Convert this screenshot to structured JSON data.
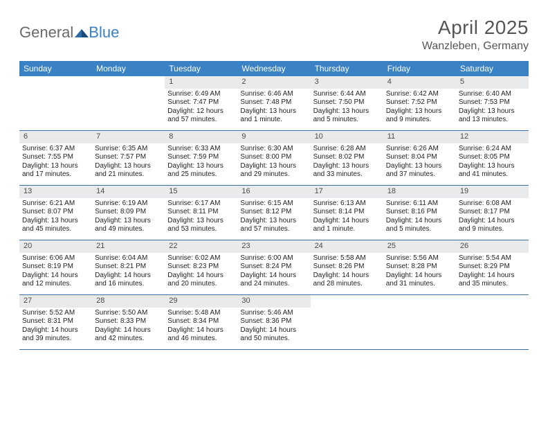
{
  "logo": {
    "text1": "General",
    "text2": "Blue"
  },
  "title": "April 2025",
  "location": "Wanzleben, Germany",
  "colors": {
    "header_bg": "#3b82c4",
    "header_text": "#ffffff",
    "daynum_bg": "#e9eaeb",
    "week_border": "#3b6fa0",
    "title_color": "#555555",
    "logo_gray": "#6a6a6a",
    "logo_blue": "#3b7fc4"
  },
  "weekdays": [
    "Sunday",
    "Monday",
    "Tuesday",
    "Wednesday",
    "Thursday",
    "Friday",
    "Saturday"
  ],
  "weeks": [
    [
      {
        "empty": true
      },
      {
        "empty": true
      },
      {
        "day": "1",
        "sunrise": "Sunrise: 6:49 AM",
        "sunset": "Sunset: 7:47 PM",
        "daylight1": "Daylight: 12 hours",
        "daylight2": "and 57 minutes."
      },
      {
        "day": "2",
        "sunrise": "Sunrise: 6:46 AM",
        "sunset": "Sunset: 7:48 PM",
        "daylight1": "Daylight: 13 hours",
        "daylight2": "and 1 minute."
      },
      {
        "day": "3",
        "sunrise": "Sunrise: 6:44 AM",
        "sunset": "Sunset: 7:50 PM",
        "daylight1": "Daylight: 13 hours",
        "daylight2": "and 5 minutes."
      },
      {
        "day": "4",
        "sunrise": "Sunrise: 6:42 AM",
        "sunset": "Sunset: 7:52 PM",
        "daylight1": "Daylight: 13 hours",
        "daylight2": "and 9 minutes."
      },
      {
        "day": "5",
        "sunrise": "Sunrise: 6:40 AM",
        "sunset": "Sunset: 7:53 PM",
        "daylight1": "Daylight: 13 hours",
        "daylight2": "and 13 minutes."
      }
    ],
    [
      {
        "day": "6",
        "sunrise": "Sunrise: 6:37 AM",
        "sunset": "Sunset: 7:55 PM",
        "daylight1": "Daylight: 13 hours",
        "daylight2": "and 17 minutes."
      },
      {
        "day": "7",
        "sunrise": "Sunrise: 6:35 AM",
        "sunset": "Sunset: 7:57 PM",
        "daylight1": "Daylight: 13 hours",
        "daylight2": "and 21 minutes."
      },
      {
        "day": "8",
        "sunrise": "Sunrise: 6:33 AM",
        "sunset": "Sunset: 7:59 PM",
        "daylight1": "Daylight: 13 hours",
        "daylight2": "and 25 minutes."
      },
      {
        "day": "9",
        "sunrise": "Sunrise: 6:30 AM",
        "sunset": "Sunset: 8:00 PM",
        "daylight1": "Daylight: 13 hours",
        "daylight2": "and 29 minutes."
      },
      {
        "day": "10",
        "sunrise": "Sunrise: 6:28 AM",
        "sunset": "Sunset: 8:02 PM",
        "daylight1": "Daylight: 13 hours",
        "daylight2": "and 33 minutes."
      },
      {
        "day": "11",
        "sunrise": "Sunrise: 6:26 AM",
        "sunset": "Sunset: 8:04 PM",
        "daylight1": "Daylight: 13 hours",
        "daylight2": "and 37 minutes."
      },
      {
        "day": "12",
        "sunrise": "Sunrise: 6:24 AM",
        "sunset": "Sunset: 8:05 PM",
        "daylight1": "Daylight: 13 hours",
        "daylight2": "and 41 minutes."
      }
    ],
    [
      {
        "day": "13",
        "sunrise": "Sunrise: 6:21 AM",
        "sunset": "Sunset: 8:07 PM",
        "daylight1": "Daylight: 13 hours",
        "daylight2": "and 45 minutes."
      },
      {
        "day": "14",
        "sunrise": "Sunrise: 6:19 AM",
        "sunset": "Sunset: 8:09 PM",
        "daylight1": "Daylight: 13 hours",
        "daylight2": "and 49 minutes."
      },
      {
        "day": "15",
        "sunrise": "Sunrise: 6:17 AM",
        "sunset": "Sunset: 8:11 PM",
        "daylight1": "Daylight: 13 hours",
        "daylight2": "and 53 minutes."
      },
      {
        "day": "16",
        "sunrise": "Sunrise: 6:15 AM",
        "sunset": "Sunset: 8:12 PM",
        "daylight1": "Daylight: 13 hours",
        "daylight2": "and 57 minutes."
      },
      {
        "day": "17",
        "sunrise": "Sunrise: 6:13 AM",
        "sunset": "Sunset: 8:14 PM",
        "daylight1": "Daylight: 14 hours",
        "daylight2": "and 1 minute."
      },
      {
        "day": "18",
        "sunrise": "Sunrise: 6:11 AM",
        "sunset": "Sunset: 8:16 PM",
        "daylight1": "Daylight: 14 hours",
        "daylight2": "and 5 minutes."
      },
      {
        "day": "19",
        "sunrise": "Sunrise: 6:08 AM",
        "sunset": "Sunset: 8:17 PM",
        "daylight1": "Daylight: 14 hours",
        "daylight2": "and 9 minutes."
      }
    ],
    [
      {
        "day": "20",
        "sunrise": "Sunrise: 6:06 AM",
        "sunset": "Sunset: 8:19 PM",
        "daylight1": "Daylight: 14 hours",
        "daylight2": "and 12 minutes."
      },
      {
        "day": "21",
        "sunrise": "Sunrise: 6:04 AM",
        "sunset": "Sunset: 8:21 PM",
        "daylight1": "Daylight: 14 hours",
        "daylight2": "and 16 minutes."
      },
      {
        "day": "22",
        "sunrise": "Sunrise: 6:02 AM",
        "sunset": "Sunset: 8:23 PM",
        "daylight1": "Daylight: 14 hours",
        "daylight2": "and 20 minutes."
      },
      {
        "day": "23",
        "sunrise": "Sunrise: 6:00 AM",
        "sunset": "Sunset: 8:24 PM",
        "daylight1": "Daylight: 14 hours",
        "daylight2": "and 24 minutes."
      },
      {
        "day": "24",
        "sunrise": "Sunrise: 5:58 AM",
        "sunset": "Sunset: 8:26 PM",
        "daylight1": "Daylight: 14 hours",
        "daylight2": "and 28 minutes."
      },
      {
        "day": "25",
        "sunrise": "Sunrise: 5:56 AM",
        "sunset": "Sunset: 8:28 PM",
        "daylight1": "Daylight: 14 hours",
        "daylight2": "and 31 minutes."
      },
      {
        "day": "26",
        "sunrise": "Sunrise: 5:54 AM",
        "sunset": "Sunset: 8:29 PM",
        "daylight1": "Daylight: 14 hours",
        "daylight2": "and 35 minutes."
      }
    ],
    [
      {
        "day": "27",
        "sunrise": "Sunrise: 5:52 AM",
        "sunset": "Sunset: 8:31 PM",
        "daylight1": "Daylight: 14 hours",
        "daylight2": "and 39 minutes."
      },
      {
        "day": "28",
        "sunrise": "Sunrise: 5:50 AM",
        "sunset": "Sunset: 8:33 PM",
        "daylight1": "Daylight: 14 hours",
        "daylight2": "and 42 minutes."
      },
      {
        "day": "29",
        "sunrise": "Sunrise: 5:48 AM",
        "sunset": "Sunset: 8:34 PM",
        "daylight1": "Daylight: 14 hours",
        "daylight2": "and 46 minutes."
      },
      {
        "day": "30",
        "sunrise": "Sunrise: 5:46 AM",
        "sunset": "Sunset: 8:36 PM",
        "daylight1": "Daylight: 14 hours",
        "daylight2": "and 50 minutes."
      },
      {
        "empty": true
      },
      {
        "empty": true
      },
      {
        "empty": true
      }
    ]
  ]
}
